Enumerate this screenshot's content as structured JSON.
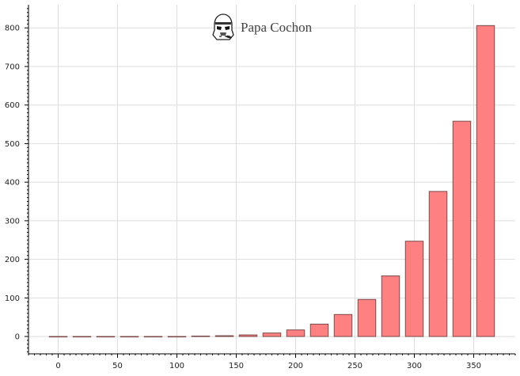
{
  "brand": {
    "name": "Papa Cochon",
    "logo_icon": "stormtrooper-helmet-icon"
  },
  "colors": {
    "bar_fill": "#ff8080",
    "bar_stroke": "#7a4a4a",
    "grid": "#dddddd",
    "axis": "#000000"
  },
  "chart_data": {
    "type": "bar",
    "title": "",
    "xlabel": "",
    "ylabel": "",
    "grid": true,
    "xlim": [
      -25,
      385
    ],
    "ylim": [
      -45,
      860
    ],
    "x_ticks": [
      0,
      50,
      100,
      150,
      200,
      250,
      300,
      350
    ],
    "y_ticks": [
      0,
      100,
      200,
      300,
      400,
      500,
      600,
      700,
      800
    ],
    "x": [
      0,
      20,
      40,
      60,
      80,
      100,
      120,
      140,
      160,
      180,
      200,
      220,
      240,
      260,
      280,
      300,
      320,
      340,
      360
    ],
    "values": [
      0,
      0,
      0,
      0,
      0,
      0,
      1,
      2,
      4,
      9,
      17,
      32,
      57,
      96,
      157,
      247,
      376,
      558,
      806
    ]
  }
}
